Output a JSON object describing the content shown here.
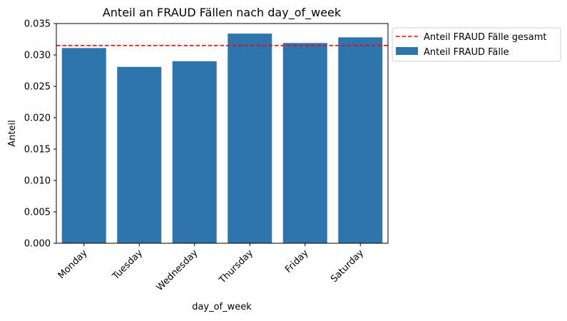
{
  "chart_data": {
    "type": "bar",
    "title": "Anteil an FRAUD Fällen nach day_of_week",
    "xlabel": "day_of_week",
    "ylabel": "Anteil",
    "categories": [
      "Monday",
      "Tuesday",
      "Wednesday",
      "Thursday",
      "Friday",
      "Saturday"
    ],
    "series": [
      {
        "name": "Anteil FRAUD Fälle",
        "values": [
          0.0311,
          0.0281,
          0.029,
          0.0334,
          0.0319,
          0.0328
        ],
        "color": "#2e75ad"
      }
    ],
    "reference_line": {
      "name": "Anteil FRAUD Fälle gesamt",
      "value": 0.0315,
      "color": "#ff0000",
      "style": "dashed"
    },
    "ylim": [
      0,
      0.035
    ],
    "yticks": [
      "0.000",
      "0.005",
      "0.010",
      "0.015",
      "0.020",
      "0.025",
      "0.030",
      "0.035"
    ],
    "grid": false,
    "legend_placement": "outside-upper-right"
  }
}
